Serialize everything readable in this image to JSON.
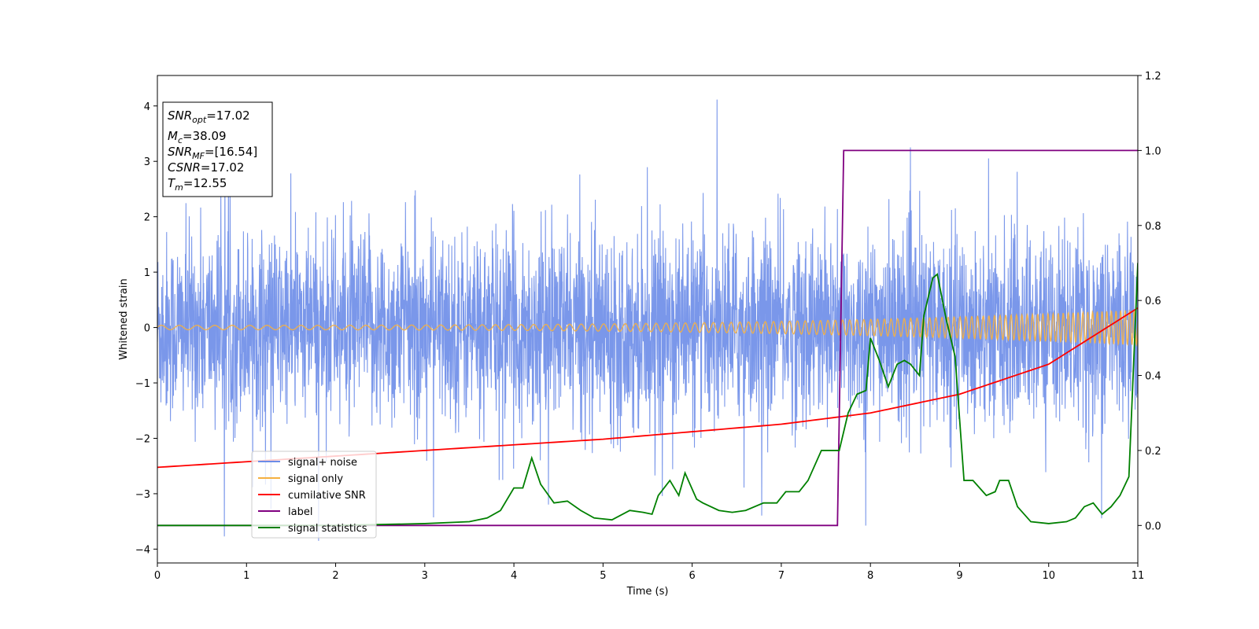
{
  "chart_data": {
    "type": "line",
    "xlabel": "Time (s)",
    "ylabel": "Whitened strain",
    "xlim": [
      0,
      11
    ],
    "ylim_left": [
      -4.25,
      4.55
    ],
    "ylim_right": [
      -0.1,
      1.2
    ],
    "x_ticks": [
      0,
      1,
      2,
      3,
      4,
      5,
      6,
      7,
      8,
      9,
      10,
      11
    ],
    "y_ticks_left": [
      4,
      3,
      2,
      1,
      0,
      -1,
      -2,
      -3,
      -4
    ],
    "y_ticks_right": [
      1.2,
      1.0,
      0.8,
      0.6,
      0.4,
      0.2,
      0.0
    ],
    "y_tick_labels_left": [
      "4",
      "3",
      "2",
      "1",
      "0",
      "−1",
      "−2",
      "−3",
      "−4"
    ],
    "y_tick_labels_right": [
      "1.2",
      "1.0",
      "0.8",
      "0.6",
      "0.4",
      "0.2",
      "0.0"
    ],
    "legend_position": "lower-left",
    "grid": false,
    "series": [
      {
        "name": "signal+ noise",
        "axis": "left",
        "color": "#6b8ce8",
        "kind": "noise",
        "envelope": [
          -1.6,
          1.6
        ],
        "outlier_max": 4.15,
        "outlier_min": -3.85
      },
      {
        "name": "signal only",
        "axis": "left",
        "color": "#f5b041",
        "kind": "chirp",
        "start_freq_hz": 5,
        "end_freq_hz": 20,
        "start_amp": 0.04,
        "end_amp": 0.32
      },
      {
        "name": "cumilative SNR",
        "axis": "right",
        "color": "#ff0000",
        "x": [
          0,
          1,
          2,
          3,
          4,
          5,
          6,
          7,
          8,
          9,
          10,
          11
        ],
        "y": [
          0.155,
          0.17,
          0.185,
          0.2,
          0.215,
          0.23,
          0.25,
          0.27,
          0.3,
          0.35,
          0.43,
          0.58
        ]
      },
      {
        "name": "label",
        "axis": "right",
        "color": "#800080",
        "x": [
          0,
          7.63,
          7.7,
          11
        ],
        "y": [
          0,
          0,
          1,
          1
        ]
      },
      {
        "name": "signal statistics",
        "axis": "right",
        "color": "#008000",
        "x": [
          0,
          1,
          2,
          3,
          3.5,
          3.7,
          3.85,
          4.0,
          4.1,
          4.2,
          4.3,
          4.45,
          4.6,
          4.75,
          4.9,
          5.1,
          5.3,
          5.45,
          5.55,
          5.62,
          5.75,
          5.85,
          5.92,
          6.05,
          6.12,
          6.3,
          6.45,
          6.6,
          6.8,
          6.95,
          7.05,
          7.2,
          7.3,
          7.45,
          7.55,
          7.65,
          7.75,
          7.85,
          7.95,
          8.0,
          8.1,
          8.2,
          8.3,
          8.38,
          8.45,
          8.55,
          8.6,
          8.7,
          8.75,
          8.85,
          8.95,
          9.05,
          9.15,
          9.3,
          9.4,
          9.45,
          9.55,
          9.65,
          9.8,
          10.0,
          10.2,
          10.3,
          10.4,
          10.5,
          10.6,
          10.7,
          10.8,
          10.9,
          11.0
        ],
        "y": [
          0,
          0,
          0,
          0.005,
          0.01,
          0.02,
          0.04,
          0.1,
          0.1,
          0.18,
          0.11,
          0.06,
          0.065,
          0.04,
          0.02,
          0.015,
          0.04,
          0.035,
          0.03,
          0.08,
          0.12,
          0.08,
          0.14,
          0.07,
          0.06,
          0.04,
          0.035,
          0.04,
          0.06,
          0.06,
          0.09,
          0.09,
          0.12,
          0.2,
          0.2,
          0.2,
          0.3,
          0.35,
          0.36,
          0.5,
          0.44,
          0.37,
          0.43,
          0.44,
          0.43,
          0.4,
          0.56,
          0.66,
          0.67,
          0.55,
          0.45,
          0.12,
          0.12,
          0.08,
          0.09,
          0.12,
          0.12,
          0.05,
          0.01,
          0.005,
          0.01,
          0.02,
          0.05,
          0.06,
          0.03,
          0.05,
          0.08,
          0.13,
          0.7
        ]
      }
    ],
    "annotation": [
      {
        "main": "SNR",
        "sub": "opt",
        "rest": "=17.02"
      },
      {
        "main": "M",
        "sub": "c",
        "rest": "=38.09"
      },
      {
        "main": "SNR",
        "sub": "MF",
        "rest": "=[16.54]"
      },
      {
        "main": "CSNR",
        "sub": "",
        "rest": "=17.02"
      },
      {
        "main": "T",
        "sub": "m",
        "rest": "=12.55"
      }
    ]
  }
}
